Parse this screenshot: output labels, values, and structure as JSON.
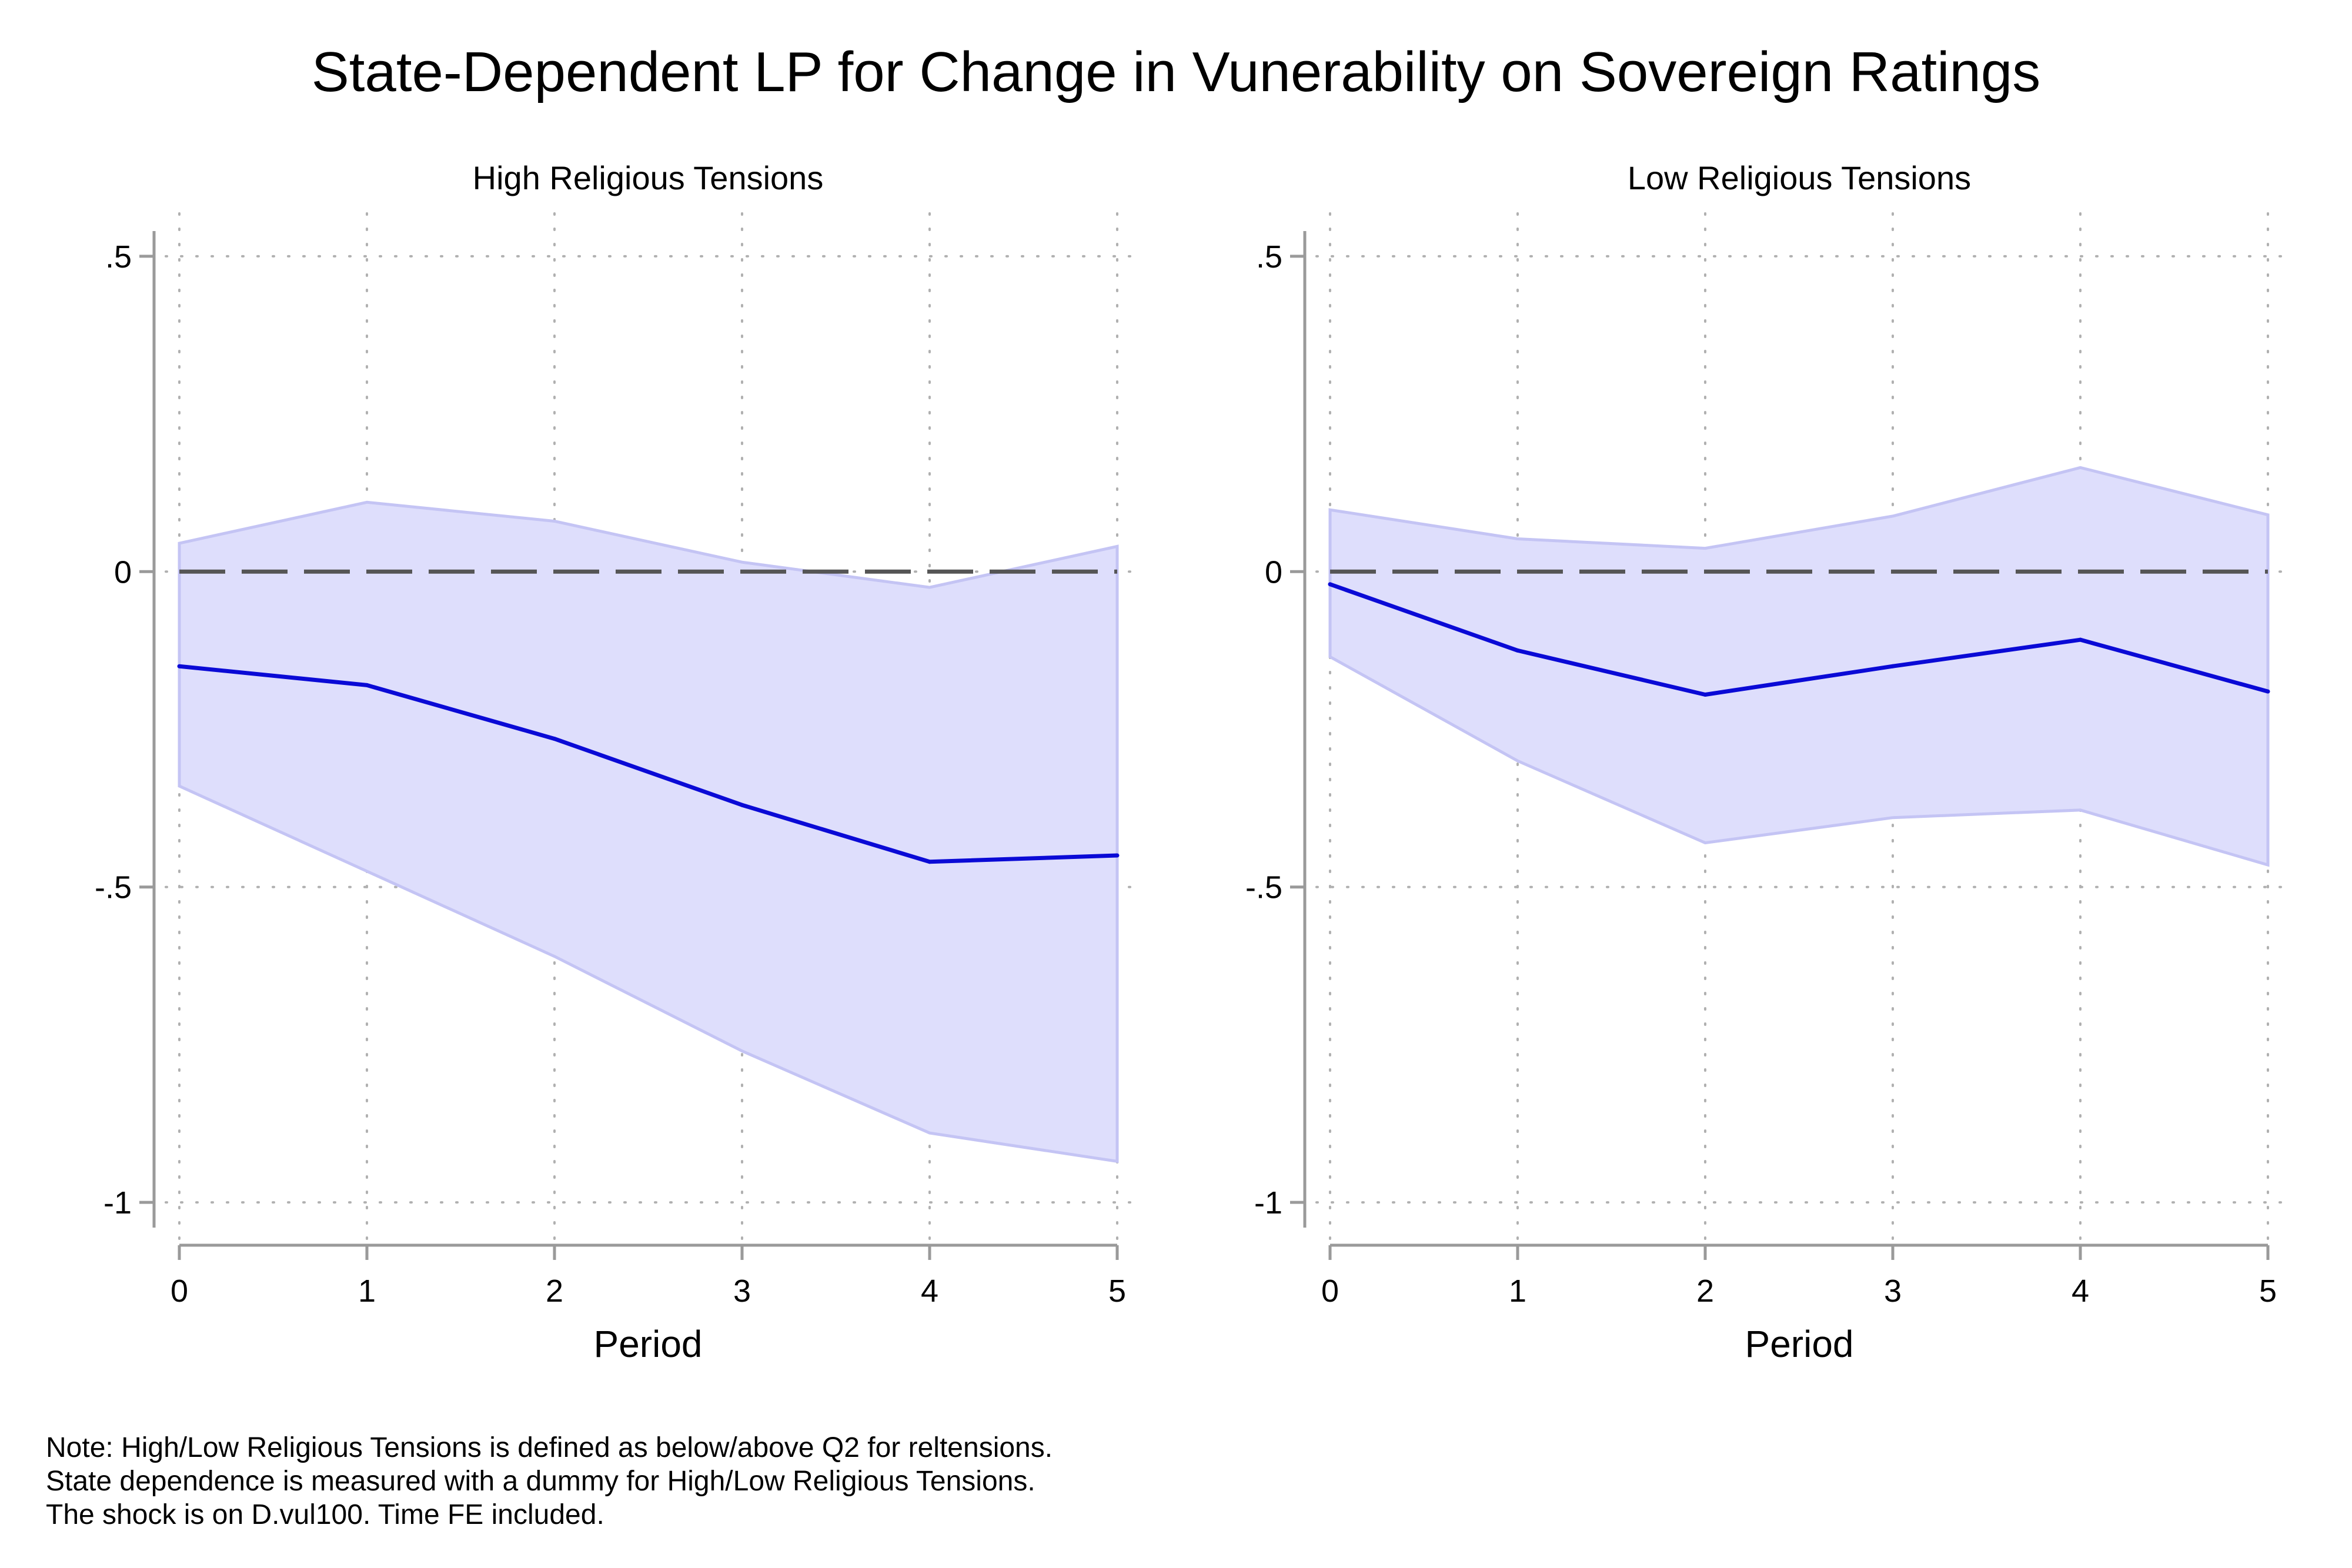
{
  "figure": {
    "title": "State-Dependent LP for Change in Vunerability on Sovereign Ratings",
    "note_lines": [
      "Note: High/Low Religious Tensions is defined as below/above Q2 for reltensions.",
      "State dependence is measured with a dummy for High/Low Religious Tensions.",
      "The shock is on D.vul100. Time FE included."
    ]
  },
  "colors": {
    "line": "#0a0ad6",
    "band_fill": "#dedefc",
    "band_edge": "#c4c4f4",
    "zero_line": "#555555",
    "axis": "#9a9a9a",
    "grid": "#b0b0b0"
  },
  "chart_data": [
    {
      "type": "line",
      "title": "High Religious Tensions",
      "xlabel": "Period",
      "ylabel": "",
      "x": [
        0,
        1,
        2,
        3,
        4,
        5
      ],
      "xticks": [
        "0",
        "1",
        "2",
        "3",
        "4",
        "5"
      ],
      "yticks": [
        {
          "value": 0.5,
          "label": ".5"
        },
        {
          "value": 0,
          "label": "0"
        },
        {
          "value": -0.5,
          "label": "-.5"
        },
        {
          "value": -1,
          "label": "-1"
        }
      ],
      "ylim": [
        -1.04,
        0.54
      ],
      "grid": true,
      "reference_line": 0,
      "series": [
        {
          "role": "estimate",
          "values": [
            -0.15,
            -0.18,
            -0.265,
            -0.37,
            -0.46,
            -0.45
          ]
        },
        {
          "role": "upper",
          "values": [
            0.045,
            0.11,
            0.08,
            0.015,
            -0.025,
            0.04
          ]
        },
        {
          "role": "lower",
          "values": [
            -0.34,
            -0.475,
            -0.61,
            -0.76,
            -0.89,
            -0.935
          ]
        }
      ]
    },
    {
      "type": "line",
      "title": "Low Religious Tensions",
      "xlabel": "Period",
      "ylabel": "",
      "x": [
        0,
        1,
        2,
        3,
        4,
        5
      ],
      "xticks": [
        "0",
        "1",
        "2",
        "3",
        "4",
        "5"
      ],
      "yticks": [
        {
          "value": 0.5,
          "label": ".5"
        },
        {
          "value": 0,
          "label": "0"
        },
        {
          "value": -0.5,
          "label": "-.5"
        },
        {
          "value": -1,
          "label": "-1"
        }
      ],
      "ylim": [
        -1.04,
        0.54
      ],
      "grid": true,
      "reference_line": 0,
      "series": [
        {
          "role": "estimate",
          "values": [
            -0.02,
            -0.125,
            -0.195,
            -0.15,
            -0.108,
            -0.19
          ]
        },
        {
          "role": "upper",
          "values": [
            0.098,
            0.052,
            0.037,
            0.088,
            0.165,
            0.09
          ]
        },
        {
          "role": "lower",
          "values": [
            -0.135,
            -0.3,
            -0.43,
            -0.39,
            -0.378,
            -0.465
          ]
        }
      ]
    }
  ]
}
